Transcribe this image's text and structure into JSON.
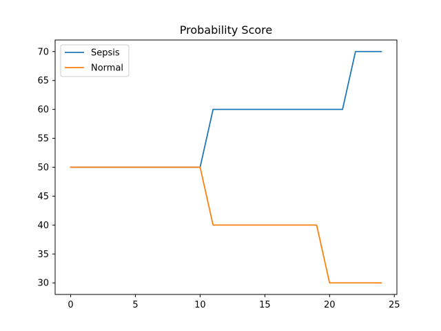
{
  "chart_data": {
    "type": "line",
    "title": "Probability Score",
    "xlabel": "",
    "ylabel": "",
    "xlim": [
      -1.2,
      25.2
    ],
    "ylim": [
      28,
      72
    ],
    "x_ticks": [
      0,
      5,
      10,
      15,
      20,
      25
    ],
    "y_ticks": [
      30,
      35,
      40,
      45,
      50,
      55,
      60,
      65,
      70
    ],
    "grid": false,
    "legend_position": "top-left",
    "x": [
      0,
      1,
      2,
      3,
      4,
      5,
      6,
      7,
      8,
      9,
      10,
      11,
      12,
      13,
      14,
      15,
      16,
      17,
      18,
      19,
      20,
      21,
      22,
      23,
      24
    ],
    "series": [
      {
        "name": "Sepsis",
        "color": "#1f77b4",
        "values": [
          50,
          50,
          50,
          50,
          50,
          50,
          50,
          50,
          50,
          50,
          50,
          60,
          60,
          60,
          60,
          60,
          60,
          60,
          60,
          60,
          60,
          60,
          70,
          70,
          70
        ]
      },
      {
        "name": "Normal",
        "color": "#ff7f0e",
        "values": [
          50,
          50,
          50,
          50,
          50,
          50,
          50,
          50,
          50,
          50,
          50,
          40,
          40,
          40,
          40,
          40,
          40,
          40,
          40,
          40,
          30,
          30,
          30,
          30,
          30
        ]
      }
    ]
  }
}
